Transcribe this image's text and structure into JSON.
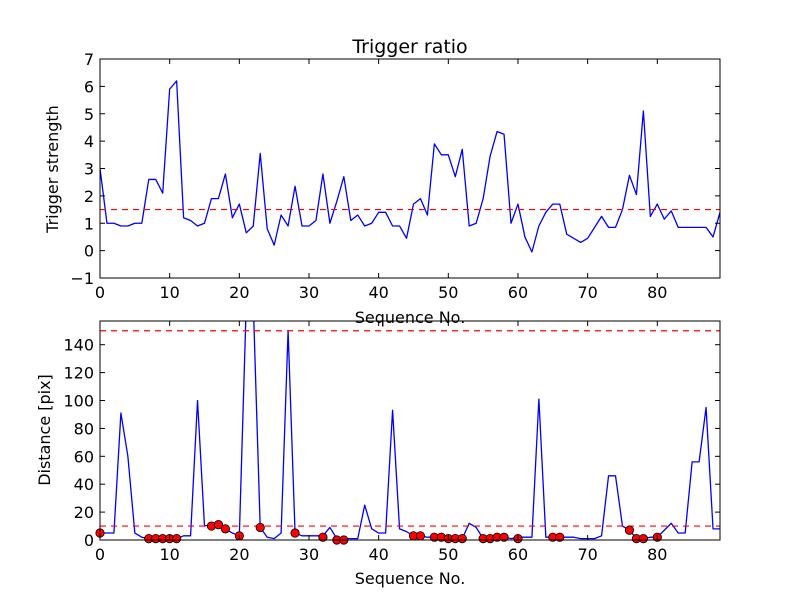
{
  "chart_data": [
    {
      "type": "line",
      "title": "Trigger ratio",
      "xlabel": "Sequence No.",
      "ylabel": "Trigger strength",
      "xlim": [
        0,
        89
      ],
      "ylim": [
        -1,
        7
      ],
      "xticks": [
        0,
        10,
        20,
        30,
        40,
        50,
        60,
        70,
        80
      ],
      "yticks": [
        -1,
        0,
        1,
        2,
        3,
        4,
        5,
        6,
        7
      ],
      "grid": false,
      "series": [
        {
          "style": "line",
          "color": "#0000ff",
          "x": [
            0,
            1,
            2,
            3,
            4,
            5,
            6,
            7,
            8,
            9,
            10,
            11,
            12,
            13,
            14,
            15,
            16,
            17,
            18,
            19,
            20,
            21,
            22,
            23,
            24,
            25,
            26,
            27,
            28,
            29,
            30,
            31,
            32,
            33,
            34,
            35,
            36,
            37,
            38,
            39,
            40,
            41,
            42,
            43,
            44,
            45,
            46,
            47,
            48,
            49,
            50,
            51,
            52,
            53,
            54,
            55,
            56,
            57,
            58,
            59,
            60,
            61,
            62,
            63,
            64,
            65,
            66,
            67,
            68,
            69,
            70,
            71,
            72,
            73,
            74,
            75,
            76,
            77,
            78,
            79,
            80,
            81,
            82,
            83,
            84,
            85,
            86,
            87,
            88,
            89
          ],
          "y": [
            3.0,
            1.0,
            1.0,
            0.9,
            0.9,
            1.0,
            1.0,
            2.6,
            2.6,
            2.1,
            5.9,
            6.2,
            1.2,
            1.1,
            0.9,
            1.0,
            1.9,
            1.9,
            2.8,
            1.2,
            1.7,
            0.65,
            0.9,
            3.55,
            0.8,
            0.2,
            1.3,
            0.9,
            2.35,
            0.9,
            0.9,
            1.1,
            2.8,
            1.0,
            1.8,
            2.7,
            1.1,
            1.3,
            0.9,
            1.0,
            1.4,
            1.4,
            0.9,
            0.9,
            0.45,
            1.7,
            1.9,
            1.3,
            3.9,
            3.5,
            3.5,
            2.7,
            3.7,
            0.9,
            1.0,
            1.9,
            3.45,
            4.35,
            4.25,
            1.0,
            1.7,
            0.5,
            -0.05,
            0.9,
            1.4,
            1.7,
            1.7,
            0.6,
            0.45,
            0.3,
            0.45,
            0.85,
            1.25,
            0.85,
            0.85,
            1.5,
            2.75,
            2.05,
            5.1,
            1.25,
            1.7,
            1.15,
            1.45,
            0.85,
            0.85,
            0.85,
            0.85,
            0.85,
            0.5,
            1.4
          ]
        },
        {
          "style": "dashed",
          "color": "#ff0000",
          "y_constant": 1.5
        }
      ]
    },
    {
      "type": "line",
      "title": "",
      "xlabel": "Sequence No.",
      "ylabel": "Distance [pix]",
      "xlim": [
        0,
        89
      ],
      "ylim": [
        0,
        157
      ],
      "xticks": [
        0,
        10,
        20,
        30,
        40,
        50,
        60,
        70,
        80
      ],
      "yticks": [
        0,
        20,
        40,
        60,
        80,
        100,
        120,
        140
      ],
      "grid": false,
      "series": [
        {
          "style": "line",
          "color": "#0000ff",
          "x": [
            0,
            1,
            2,
            3,
            4,
            5,
            6,
            7,
            8,
            9,
            10,
            11,
            12,
            13,
            14,
            15,
            16,
            17,
            18,
            19,
            20,
            21,
            22,
            23,
            24,
            25,
            26,
            27,
            28,
            29,
            30,
            31,
            32,
            33,
            34,
            35,
            36,
            37,
            38,
            39,
            40,
            41,
            42,
            43,
            44,
            45,
            46,
            47,
            48,
            49,
            50,
            51,
            52,
            53,
            54,
            55,
            56,
            57,
            58,
            59,
            60,
            61,
            62,
            63,
            64,
            65,
            66,
            67,
            68,
            69,
            70,
            71,
            72,
            73,
            74,
            75,
            76,
            77,
            78,
            79,
            80,
            81,
            82,
            83,
            84,
            85,
            86,
            87,
            88,
            89
          ],
          "y": [
            5,
            5,
            5,
            91,
            60,
            5,
            2,
            1,
            1,
            1,
            1,
            1,
            3,
            3,
            100,
            10,
            11,
            11,
            8,
            5,
            3,
            170,
            170,
            9,
            2,
            1,
            5,
            150,
            5,
            3,
            3,
            3,
            3,
            9,
            1,
            1,
            1,
            1,
            25,
            8,
            5,
            5,
            93,
            8,
            6,
            3,
            3,
            2,
            2,
            2,
            1,
            1,
            1,
            12,
            9,
            1,
            1,
            2,
            2,
            1,
            2,
            2,
            2,
            101,
            2,
            2,
            2,
            2,
            2,
            1,
            1,
            1,
            3,
            46,
            46,
            10,
            7,
            1,
            1,
            2,
            2,
            7,
            12,
            5,
            5,
            56,
            56,
            95,
            8,
            8
          ]
        },
        {
          "style": "markers",
          "color": "#ff0000",
          "x": [
            0,
            7,
            8,
            9,
            10,
            11,
            16,
            17,
            18,
            20,
            23,
            28,
            32,
            34,
            35,
            45,
            46,
            48,
            49,
            50,
            51,
            52,
            55,
            56,
            57,
            58,
            60,
            65,
            66,
            76,
            77,
            78,
            80
          ],
          "y": [
            5,
            1,
            1,
            1,
            1,
            1,
            10,
            11,
            8,
            3,
            9,
            5,
            2,
            0,
            0,
            3,
            3,
            2,
            2,
            1,
            1,
            1,
            1,
            1,
            2,
            2,
            1,
            2,
            2,
            7,
            1,
            1,
            2
          ]
        },
        {
          "style": "dashed",
          "color": "#ff0000",
          "y_constant": 10
        },
        {
          "style": "dashed",
          "color": "#ff0000",
          "y_constant": 150
        }
      ]
    }
  ]
}
